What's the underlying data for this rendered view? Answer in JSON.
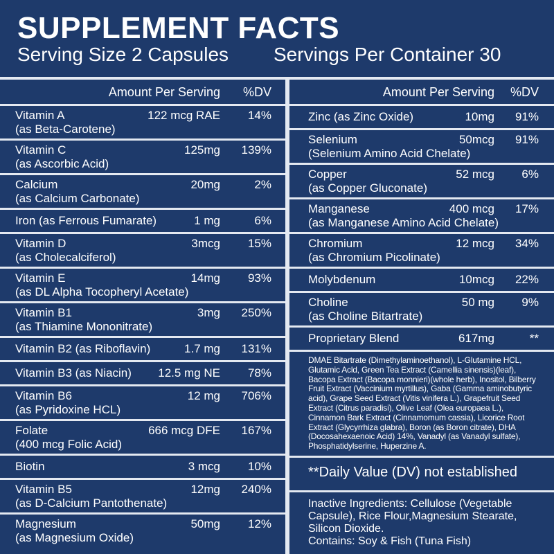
{
  "header": {
    "title": "SUPPLEMENT FACTS",
    "serving_size": "Serving Size 2 Capsules",
    "servings_per_container": "Servings Per Container 30"
  },
  "left": {
    "column_headers": [
      "Amount Per Serving",
      "%DV"
    ],
    "rows": [
      {
        "name": "Vitamin A",
        "amount": "122 mcg RAE",
        "dv": "14%",
        "detail": "(as Beta-Carotene)"
      },
      {
        "name": "Vitamin C",
        "amount": "125mg",
        "dv": "139%",
        "detail": "(as Ascorbic Acid)"
      },
      {
        "name": "Calcium",
        "amount": "20mg",
        "dv": "2%",
        "detail": "(as Calcium Carbonate)"
      },
      {
        "name": "Iron (as Ferrous Fumarate)",
        "amount": "1 mg",
        "dv": "6%"
      },
      {
        "name": "Vitamin D",
        "amount": "3mcg",
        "dv": "15%",
        "detail": "(as Cholecalciferol)"
      },
      {
        "name": "Vitamin E",
        "amount": "14mg",
        "dv": "93%",
        "detail": "(as DL Alpha Tocopheryl Acetate)"
      },
      {
        "name": "Vitamin B1",
        "amount": "3mg",
        "dv": "250%",
        "detail": "(as Thiamine Mononitrate)"
      },
      {
        "name": "Vitamin B2 (as Riboflavin)",
        "amount": "1.7 mg",
        "dv": "131%"
      },
      {
        "name": "Vitamin B3 (as Niacin)",
        "amount": "12.5 mg NE",
        "dv": "78%"
      },
      {
        "name": "Vitamin B6",
        "amount": "12 mg",
        "dv": "706%",
        "detail": "(as Pyridoxine HCL)"
      },
      {
        "name": "Folate",
        "amount": "666 mcg DFE",
        "dv": "167%",
        "detail": "(400 mcg Folic Acid)"
      },
      {
        "name": "Biotin",
        "amount": "3 mcg",
        "dv": "10%"
      },
      {
        "name": "Vitamin B5",
        "amount": "12mg",
        "dv": "240%",
        "detail": "(as D-Calcium Pantothenate)"
      },
      {
        "name": "Magnesium",
        "amount": "50mg",
        "dv": "12%",
        "detail": "(as Magnesium Oxide)"
      }
    ]
  },
  "right": {
    "column_headers": [
      "Amount Per Serving",
      "%DV"
    ],
    "rows": [
      {
        "name": "Zinc (as Zinc Oxide)",
        "amount": "10mg",
        "dv": "91%"
      },
      {
        "name": "Selenium",
        "amount": "50mcg",
        "dv": "91%",
        "detail": "(Selenium Amino Acid Chelate)"
      },
      {
        "name": "Copper",
        "amount": "52 mcg",
        "dv": "6%",
        "detail": "(as Copper Gluconate)"
      },
      {
        "name": "Manganese",
        "amount": "400 mcg",
        "dv": "17%",
        "detail": "(as Manganese Amino Acid Chelate)"
      },
      {
        "name": "Chromium",
        "amount": "12 mcg",
        "dv": "34%",
        "detail": "(as Chromium Picolinate)"
      },
      {
        "name": "Molybdenum",
        "amount": "10mcg",
        "dv": "22%"
      },
      {
        "name": "Choline",
        "amount": "50 mg",
        "dv": "9%",
        "detail": "(as Choline Bitartrate)"
      },
      {
        "name": "Proprietary Blend",
        "amount": "617mg",
        "dv": "**"
      }
    ],
    "blend_ingredients": "DMAE Bitartrate (Dimethylaminoethanol), L-Glutamine HCL, Glutamic Acld, Green Tea Extract (Camellia sinensis)(leaf), Bacopa Extract (Bacopa monnieri)(whole herb), Inositol, Bilberry Fruit Extract (Vaccinium myrtillus), Gaba (Gamma aminobutyric acid), Grape Seed Extract (Vitis vinifera L.), Grapefruit Seed Extract (Citrus paradisi), Olive Leaf (Olea europaea L.), Cinnamon Bark Extract (Cinnamomum cassia), Licorice Root Extract (Glycyrrhiza glabra), Boron (as Boron citrate), DHA (Docosahexaenoic Acid) 14%, Vanadyl (as Vanadyl sulfate), Phosphatidylserine, Huperzine A.",
    "dv_note": "**Daily Value (DV) not established",
    "inactive_ingredients": "Inactive Ingredients: Cellulose (Vegetable Capsule), Rice Flour,Magnesium Stearate, Silicon Dioxide.",
    "contains": "Contains: Soy & Fish (Tuna Fish)"
  }
}
